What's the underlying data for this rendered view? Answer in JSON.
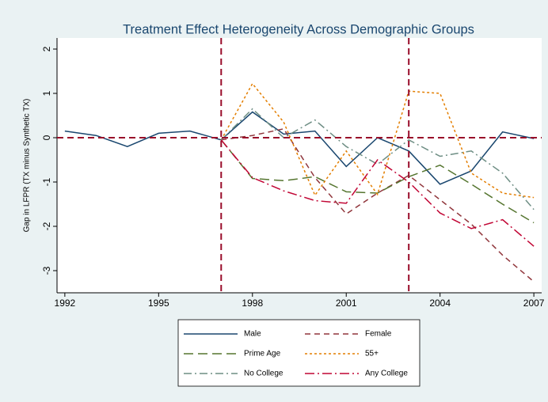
{
  "chart_data": {
    "type": "line",
    "title": "Treatment Effect Heterogeneity Across Demographic Groups",
    "y_label": "Gap in LFPR (TX minus Synthetic TX)",
    "x": [
      1992,
      1993,
      1994,
      1995,
      1996,
      1997,
      1998,
      1999,
      2000,
      2001,
      2002,
      2003,
      2004,
      2005,
      2006,
      2007
    ],
    "series": [
      {
        "name": "Male",
        "color": "#1a476f",
        "dash": "none",
        "values": [
          0.15,
          0.05,
          -0.2,
          0.1,
          0.15,
          -0.05,
          0.58,
          0.08,
          0.15,
          -0.65,
          0.0,
          -0.3,
          -1.05,
          -0.75,
          0.13,
          -0.02
        ]
      },
      {
        "name": "Female",
        "color": "#90353b",
        "dash": "7,5",
        "values": [
          null,
          null,
          null,
          null,
          null,
          -0.05,
          0.05,
          0.2,
          -0.9,
          -1.72,
          -1.25,
          -0.85,
          -1.4,
          -1.95,
          -2.65,
          -3.25
        ]
      },
      {
        "name": "Prime Age",
        "color": "#55752f",
        "dash": "12,6",
        "values": [
          null,
          null,
          null,
          null,
          null,
          -0.05,
          -0.92,
          -0.97,
          -0.88,
          -1.22,
          -1.25,
          -0.88,
          -0.62,
          -1.05,
          -1.5,
          -1.92
        ]
      },
      {
        "name": "55+",
        "color": "#e37e00",
        "dash": "3,3",
        "values": [
          null,
          null,
          null,
          null,
          null,
          -0.05,
          1.22,
          0.35,
          -1.3,
          -0.3,
          -1.28,
          1.05,
          1.0,
          -0.8,
          -1.25,
          -1.35
        ]
      },
      {
        "name": "No College",
        "color": "#6e8e84",
        "dash": "10,4,2,4",
        "values": [
          null,
          null,
          null,
          null,
          null,
          -0.05,
          0.65,
          0.0,
          0.4,
          -0.2,
          -0.6,
          -0.05,
          -0.42,
          -0.3,
          -0.8,
          -1.62
        ]
      },
      {
        "name": "Any College",
        "color": "#c10534",
        "dash": "12,4,2,4",
        "values": [
          null,
          null,
          null,
          null,
          null,
          -0.05,
          -0.9,
          -1.2,
          -1.42,
          -1.48,
          -0.5,
          -1.0,
          -1.7,
          -2.05,
          -1.85,
          -2.45
        ]
      }
    ],
    "xlim": [
      1991.75,
      2007.25
    ],
    "xticks": [
      1992,
      1995,
      1998,
      2001,
      2004,
      2007
    ],
    "ylim": [
      -3.5,
      2.25
    ],
    "yticks": [
      2,
      1,
      0,
      -1,
      -2,
      -3
    ],
    "xlines": [
      1997,
      2003
    ],
    "yline": 0,
    "refline_color": "#990c2a"
  }
}
